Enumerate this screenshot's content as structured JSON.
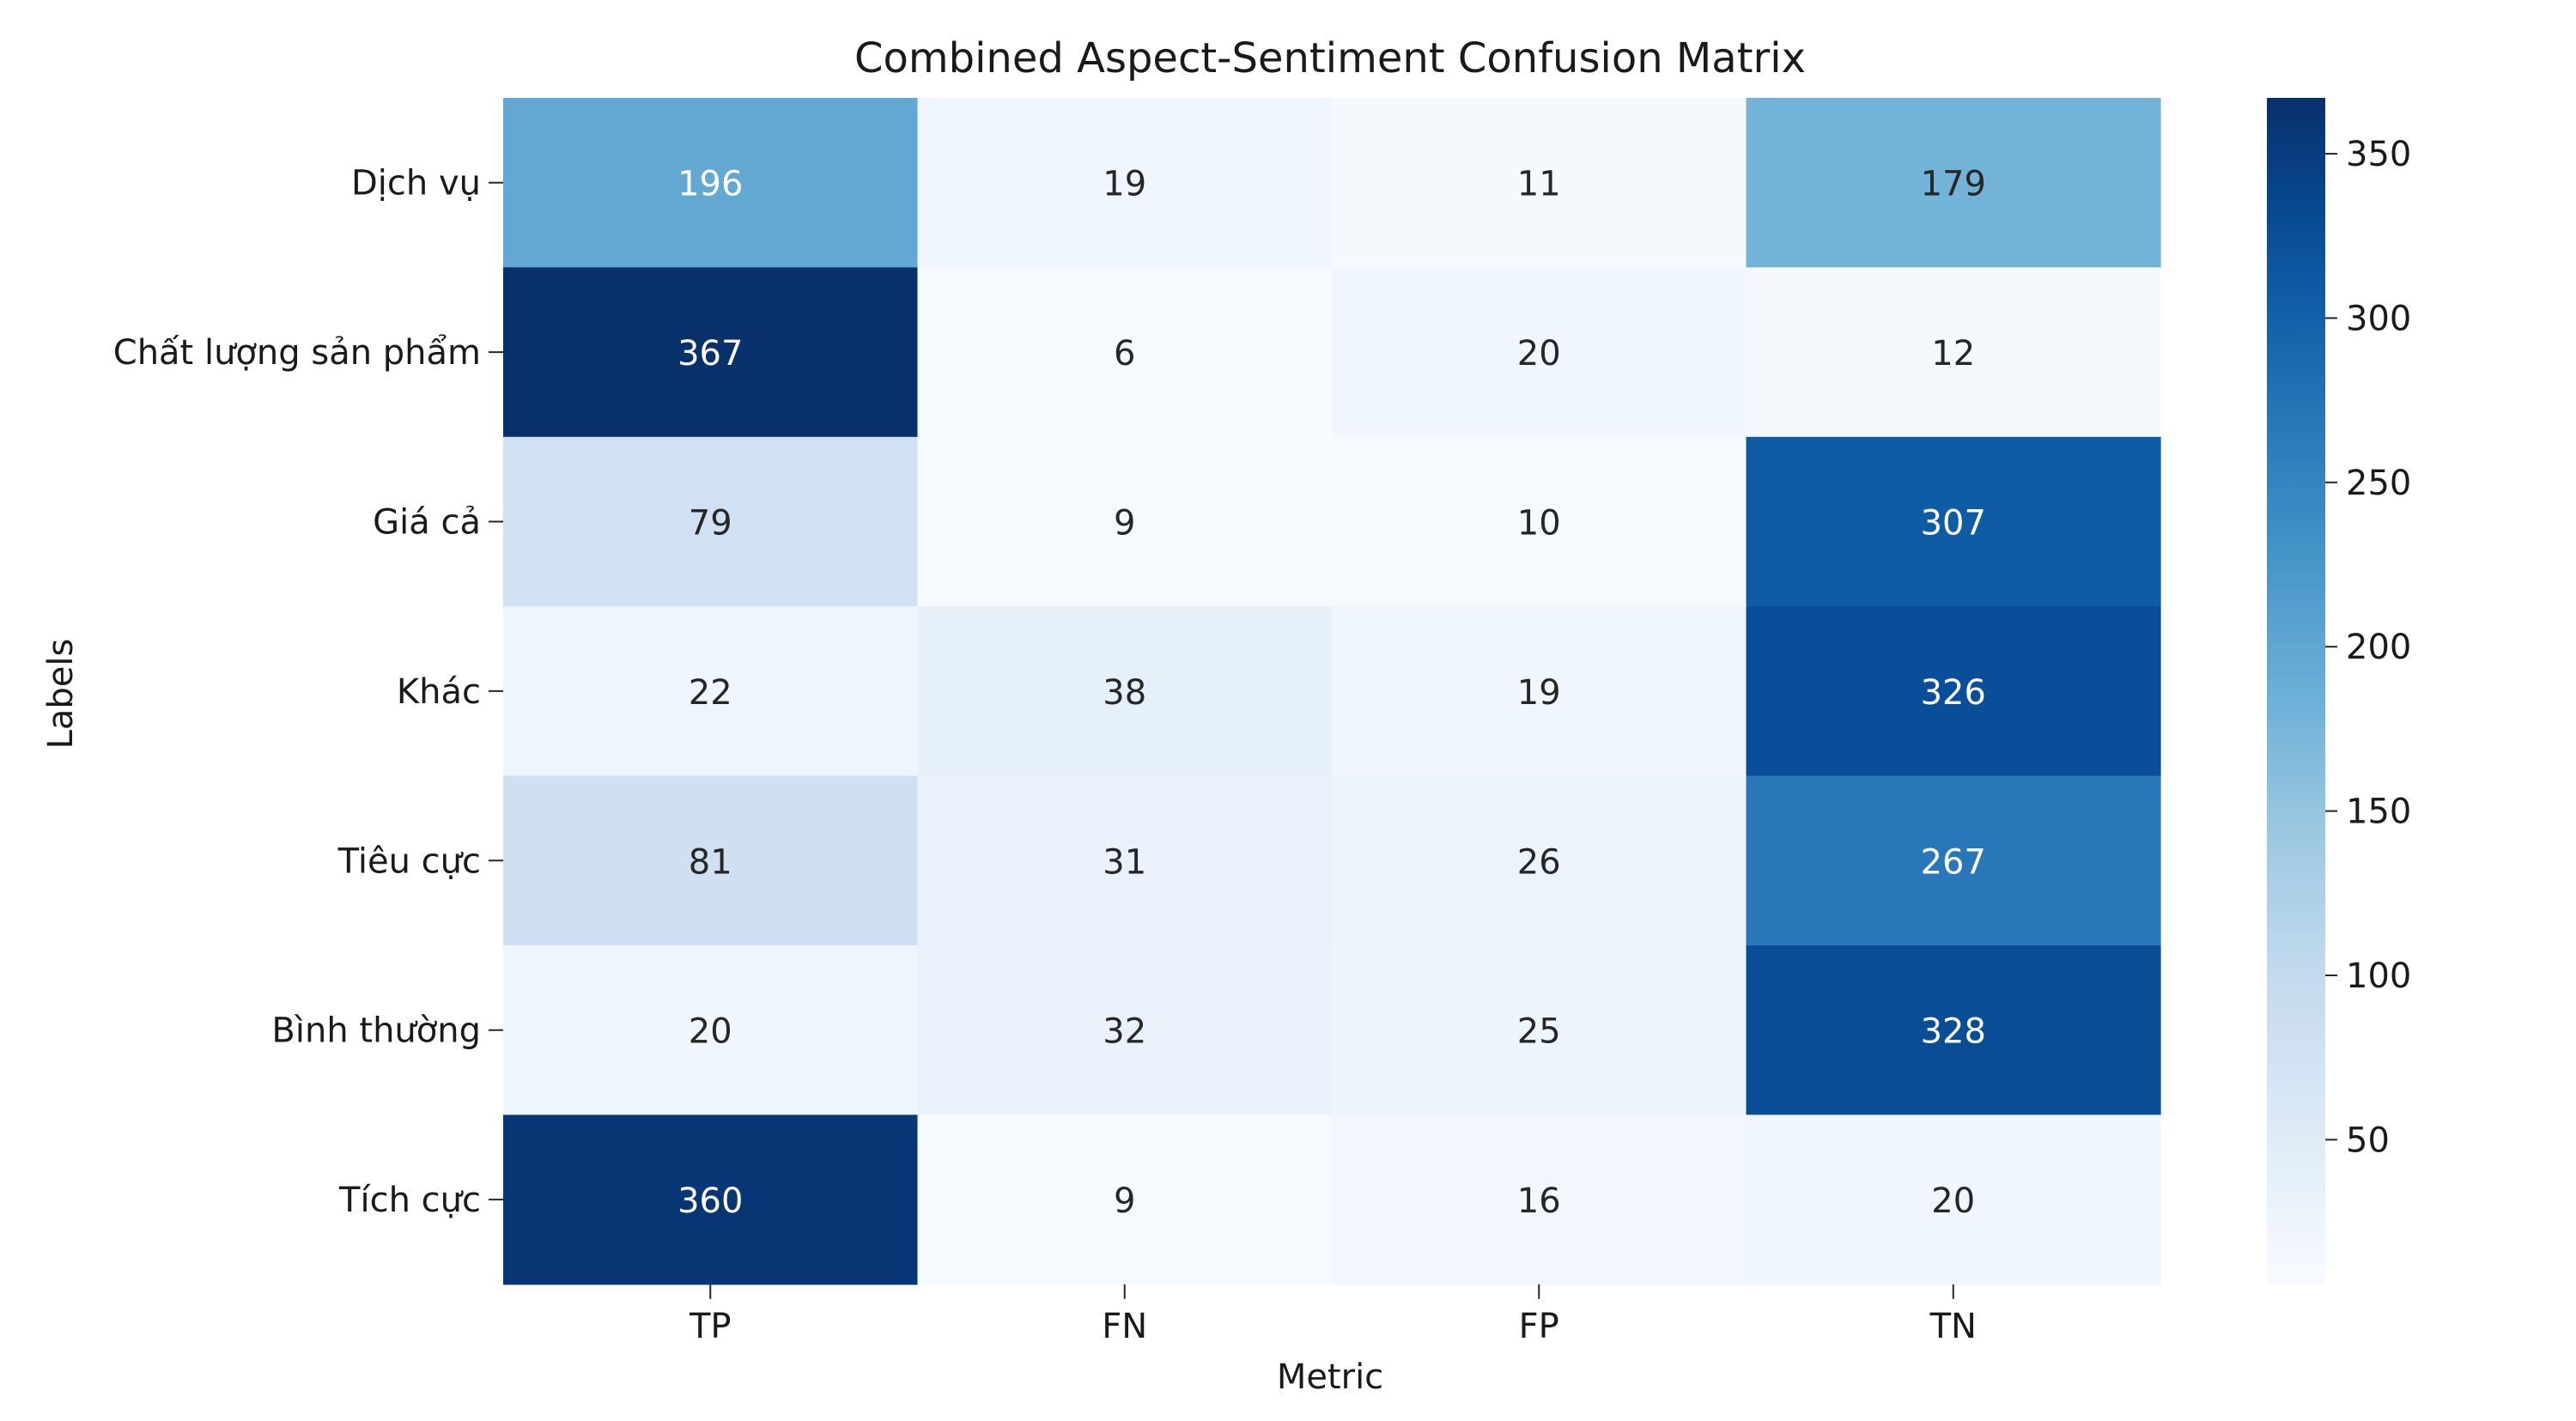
{
  "chart_data": {
    "type": "heatmap",
    "title": "Combined Aspect-Sentiment Confusion Matrix",
    "xlabel": "Metric",
    "ylabel": "Labels",
    "x_categories": [
      "TP",
      "FN",
      "FP",
      "TN"
    ],
    "y_categories": [
      "Dịch vụ",
      "Chất lượng sản phẩm",
      "Giá cả",
      "Khác",
      "Tiêu cực",
      "Bình thường",
      "Tích cực"
    ],
    "values": [
      [
        196,
        19,
        11,
        179
      ],
      [
        367,
        6,
        20,
        12
      ],
      [
        79,
        9,
        10,
        307
      ],
      [
        22,
        38,
        19,
        326
      ],
      [
        81,
        31,
        26,
        267
      ],
      [
        20,
        32,
        25,
        328
      ],
      [
        360,
        9,
        16,
        20
      ]
    ],
    "colorscale": "Blues",
    "color_range": [
      6,
      367
    ],
    "colorbar_ticks": [
      50,
      100,
      150,
      200,
      250,
      300,
      350
    ],
    "annotations": true,
    "grid": false
  }
}
